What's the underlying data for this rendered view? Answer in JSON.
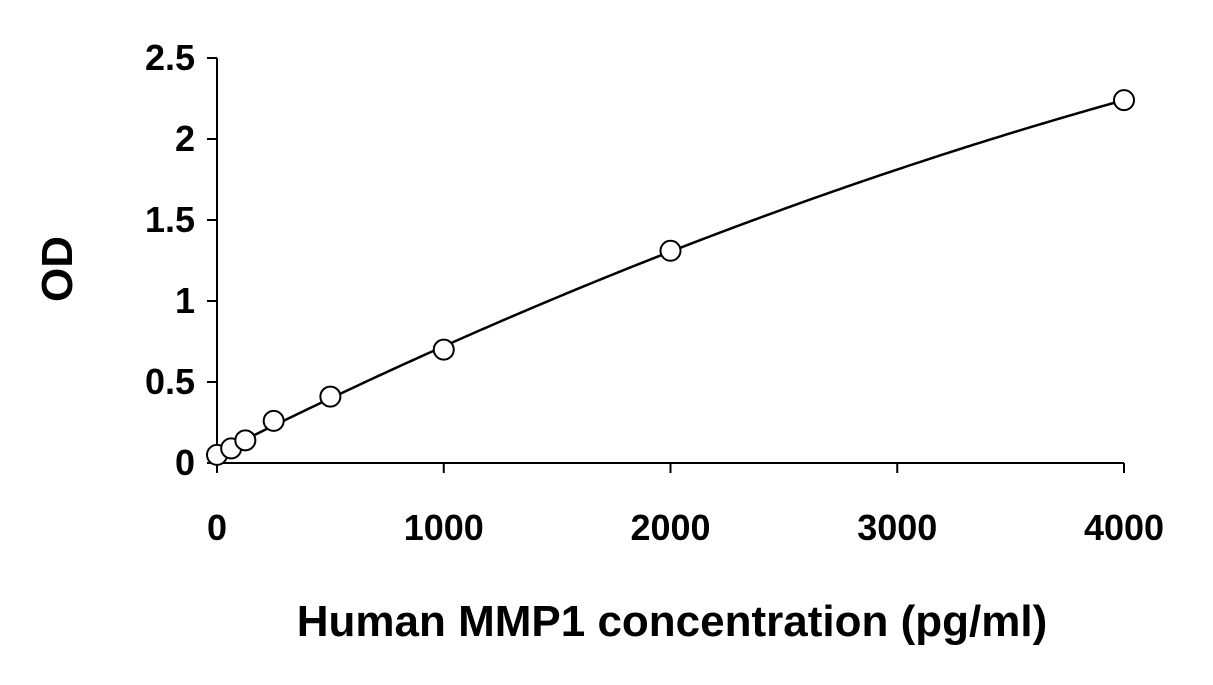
{
  "chart_data": {
    "type": "scatter",
    "title": "",
    "xlabel": "Human MMP1 concentration (pg/ml)",
    "ylabel": "OD",
    "xlim": [
      0,
      4000
    ],
    "ylim": [
      0,
      2.5
    ],
    "x_ticks": [
      0,
      1000,
      2000,
      3000,
      4000
    ],
    "x_tick_labels": [
      "0",
      "1000",
      "2000",
      "3000",
      "4000"
    ],
    "y_ticks": [
      0,
      0.5,
      1,
      1.5,
      2,
      2.5
    ],
    "y_tick_labels": [
      "0",
      "0.5",
      "1",
      "1.5",
      "2",
      "2.5"
    ],
    "grid": false,
    "legend": "none",
    "series": [
      {
        "marker": "open-circle",
        "fit_line": "smooth-curve",
        "points": [
          {
            "x": 0,
            "y": 0.05
          },
          {
            "x": 62.5,
            "y": 0.09
          },
          {
            "x": 125,
            "y": 0.14
          },
          {
            "x": 250,
            "y": 0.26
          },
          {
            "x": 500,
            "y": 0.41
          },
          {
            "x": 1000,
            "y": 0.7
          },
          {
            "x": 2000,
            "y": 1.31
          },
          {
            "x": 4000,
            "y": 2.24
          }
        ]
      }
    ]
  }
}
